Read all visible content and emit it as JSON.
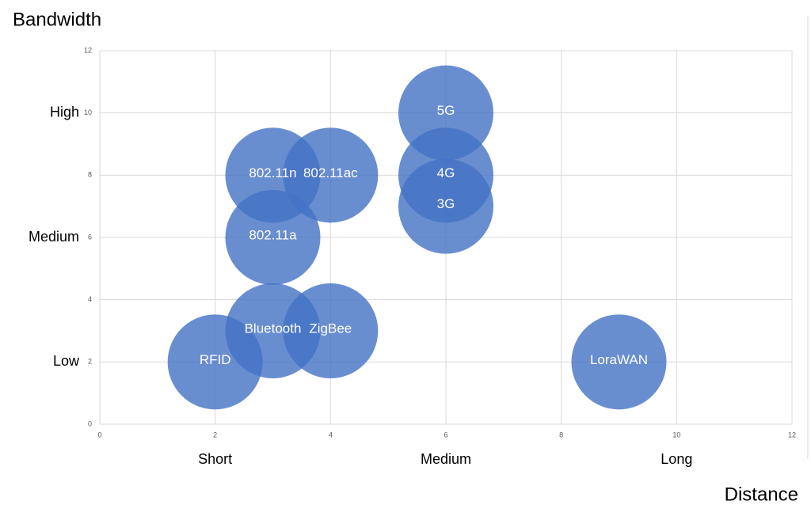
{
  "chart_data": {
    "type": "bubble",
    "title": "Bandwidth",
    "x_label": "Distance",
    "labels": [
      "RFID",
      "Bluetooth",
      "ZigBee",
      "802.11a",
      "802.11n",
      "802.11ac",
      "3G",
      "4G",
      "5G",
      "LoraWAN"
    ],
    "x": [
      2,
      3,
      4,
      3,
      3,
      4,
      6,
      6,
      6,
      9
    ],
    "values": [
      2,
      3,
      3,
      6,
      8,
      8,
      7,
      8,
      10,
      2
    ],
    "color": "#4472c4",
    "xlim": [
      0,
      12
    ],
    "xticks": [
      0,
      2,
      4,
      6,
      8,
      10,
      12
    ],
    "ylim": [
      0,
      12
    ],
    "yticks": [
      0,
      2,
      4,
      6,
      8,
      10,
      12
    ],
    "grid": true,
    "x_annotations": [
      {
        "value": 2,
        "label": "Short"
      },
      {
        "value": 6,
        "label": "Medium"
      },
      {
        "value": 10,
        "label": "Long"
      }
    ],
    "y_annotations": [
      {
        "value": 10,
        "label": "High"
      },
      {
        "value": 6,
        "label": "Medium"
      },
      {
        "value": 2,
        "label": "Low"
      }
    ]
  }
}
